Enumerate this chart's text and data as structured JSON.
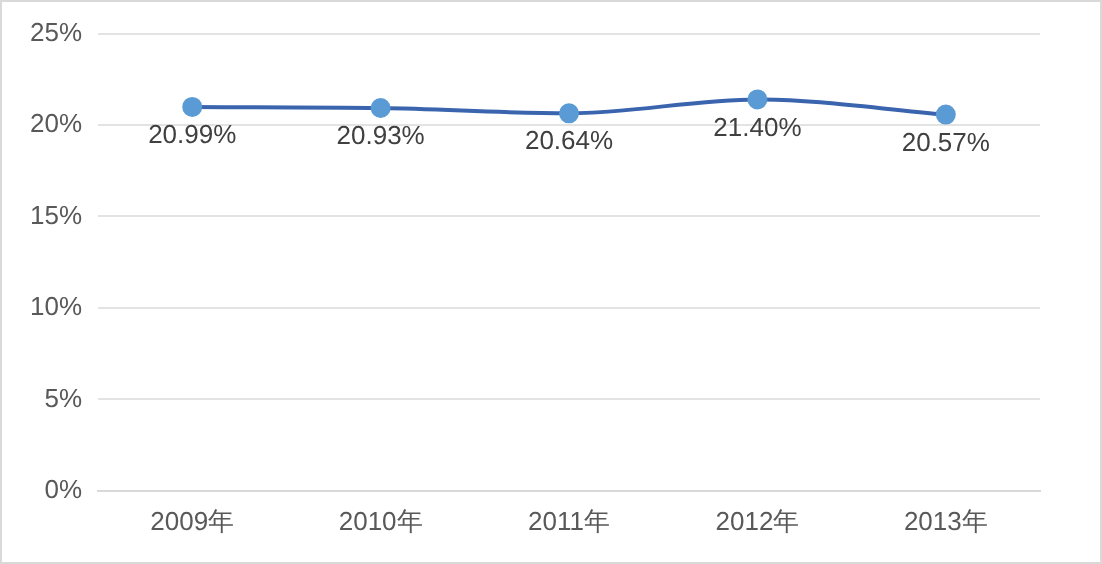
{
  "chart_data": {
    "type": "line",
    "categories": [
      "2009年",
      "2010年",
      "2011年",
      "2012年",
      "2013年"
    ],
    "series": [
      {
        "color": "#3a64ae",
        "values": [
          20.99,
          20.93,
          20.64,
          21.4,
          20.57
        ]
      }
    ],
    "value_labels": [
      "20.99%",
      "20.93%",
      "20.64%",
      "21.40%",
      "20.57%"
    ],
    "ylim": [
      0,
      25
    ],
    "yticks": [
      {
        "value": 0,
        "label": "0%"
      },
      {
        "value": 5,
        "label": "5%"
      },
      {
        "value": 10,
        "label": "10%"
      },
      {
        "value": 15,
        "label": "15%"
      },
      {
        "value": 20,
        "label": "20%"
      },
      {
        "value": 25,
        "label": "25%"
      }
    ],
    "grid": "y",
    "legend": false,
    "marker": "circle",
    "line_style": "solid"
  }
}
